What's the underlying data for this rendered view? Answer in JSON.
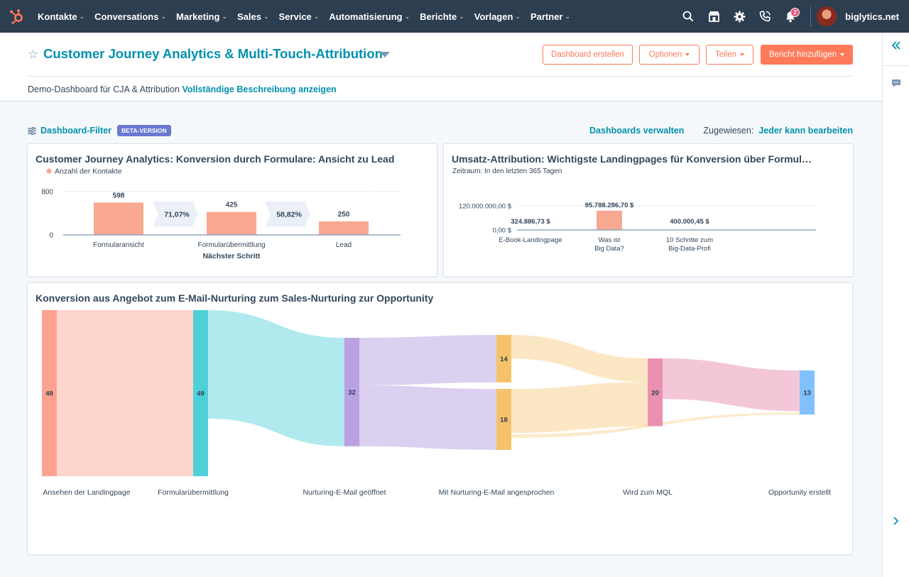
{
  "nav": {
    "items": [
      {
        "label": "Kontakte",
        "name": "nav-kontakte"
      },
      {
        "label": "Conversations",
        "name": "nav-conversations"
      },
      {
        "label": "Marketing",
        "name": "nav-marketing"
      },
      {
        "label": "Sales",
        "name": "nav-sales"
      },
      {
        "label": "Service",
        "name": "nav-service"
      },
      {
        "label": "Automatisierung",
        "name": "nav-automatisierung"
      },
      {
        "label": "Berichte",
        "name": "nav-berichte"
      },
      {
        "label": "Vorlagen",
        "name": "nav-vorlagen"
      },
      {
        "label": "Partner",
        "name": "nav-partner"
      }
    ],
    "notification_count": "2",
    "account_name": "biglytics.net",
    "brand_color": "#ff7a59",
    "bg_color": "#2d3e50"
  },
  "header": {
    "title": "Customer Journey Analytics & Multi-Touch-Attribution",
    "buttons": {
      "create": "Dashboard erstellen",
      "options": "Optionen",
      "share": "Teilen",
      "add_report": "Bericht hinzufügen"
    },
    "description": "Demo-Dashboard für CJA & Attribution",
    "description_link": "Vollständige Beschreibung anzeigen"
  },
  "filter_bar": {
    "filter_label": "Dashboard-Filter",
    "beta_badge": "BETA-VERSION",
    "manage_link": "Dashboards verwalten",
    "assigned_label": "Zugewiesen:",
    "assigned_value": "Jeder kann bearbeiten"
  },
  "cards": {
    "funnel": {
      "title": "Customer Journey Analytics: Konversion durch Formulare: Ansicht zu Lead"
    },
    "attribution": {
      "title": "Umsatz-Attribution: Wichtigste Landingpages für Konversion über Formul…"
    },
    "sankey": {
      "title": "Konversion aus Angebot zum E-Mail-Nurturing zum Sales-Nurturing zur Opportunity"
    }
  },
  "chart_data": [
    {
      "type": "bar",
      "title": "Customer Journey Analytics: Konversion durch Formulare: Ansicht zu Lead",
      "legend": [
        "Anzahl der Kontakte"
      ],
      "categories": [
        "Formularansicht",
        "Formularübermittlung",
        "Lead"
      ],
      "values": [
        598,
        425,
        250
      ],
      "value_labels": [
        "598",
        "425",
        "250"
      ],
      "conversion_rates": [
        "71,07%",
        "58,82%"
      ],
      "xlabel": "Nächster Schritt",
      "ylabel": "",
      "y_ticks": [
        "800",
        "0"
      ],
      "ylim": [
        0,
        800
      ],
      "color": "#f8a891"
    },
    {
      "type": "bar",
      "title": "Umsatz-Attribution: Wichtigste Landingpages für Konversion über Formul…",
      "subtitle": "Zeitraum: In den letzten 365 Tagen",
      "categories": [
        [
          "E-Book-Landingpage"
        ],
        [
          "Was ist",
          "Big Data?"
        ],
        [
          "10 Schritte zum",
          "Big-Data-Profi"
        ]
      ],
      "values": [
        324886.73,
        95788286.7,
        400000.45
      ],
      "value_labels": [
        "324.886,73 $",
        "95.788.286,70 $",
        "400.000,45 $"
      ],
      "y_ticks": [
        "120.000.000,00 $",
        "0,00 $"
      ],
      "ylim": [
        0,
        120000000
      ],
      "color": "#f8a891"
    },
    {
      "type": "sankey",
      "title": "Konversion aus Angebot zum E-Mail-Nurturing zum Sales-Nurturing zur Opportunity",
      "stages": [
        {
          "label": "Ansehen der Landingpage",
          "nodes": [
            {
              "value": 49,
              "color": "#fda28f"
            }
          ]
        },
        {
          "label": "Formularübermittlung",
          "nodes": [
            {
              "value": 49,
              "color": "#4fd0d9"
            }
          ]
        },
        {
          "label": "Nurturing-E-Mail geöffnet",
          "nodes": [
            {
              "value": 32,
              "color": "#b9a1e4"
            }
          ]
        },
        {
          "label": "Mit Nurturing-E-Mail angesprochen",
          "nodes": [
            {
              "value": 14,
              "color": "#f5c26b"
            },
            {
              "value": 18,
              "color": "#f5c26b"
            }
          ]
        },
        {
          "label": "Wird zum MQL",
          "nodes": [
            {
              "value": 20,
              "color": "#ea90b1"
            }
          ]
        },
        {
          "label": "Opportunity erstellt",
          "nodes": [
            {
              "value": 13,
              "color": "#81c1fd"
            }
          ]
        }
      ]
    }
  ]
}
